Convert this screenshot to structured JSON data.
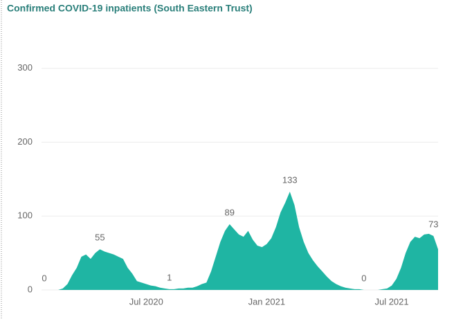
{
  "chart_data": {
    "type": "area",
    "title": "Confirmed COVID-19 inpatients (South Eastern Trust)",
    "categories": [
      null,
      null,
      null,
      null,
      null,
      null,
      null,
      null,
      null,
      null,
      null,
      null,
      null,
      null,
      null,
      null,
      null,
      null,
      null,
      null,
      null,
      null,
      "Jul 2020",
      null,
      null,
      null,
      null,
      null,
      null,
      null,
      null,
      null,
      null,
      null,
      null,
      null,
      null,
      null,
      null,
      null,
      null,
      null,
      null,
      null,
      null,
      null,
      null,
      null,
      "Jan 2021",
      null,
      null,
      null,
      null,
      null,
      null,
      null,
      null,
      null,
      null,
      null,
      null,
      null,
      null,
      null,
      null,
      null,
      null,
      null,
      null,
      null,
      null,
      null,
      null,
      null,
      null,
      "Jul 2021",
      null,
      null,
      null,
      null,
      null,
      null,
      null,
      null,
      null,
      null
    ],
    "values": [
      0,
      0,
      0,
      0,
      2,
      8,
      20,
      30,
      45,
      48,
      42,
      50,
      55,
      52,
      50,
      48,
      45,
      42,
      30,
      22,
      12,
      10,
      8,
      6,
      5,
      3,
      2,
      1,
      1,
      2,
      2,
      3,
      3,
      5,
      8,
      10,
      25,
      45,
      65,
      80,
      89,
      82,
      75,
      72,
      80,
      68,
      60,
      58,
      62,
      70,
      85,
      105,
      118,
      133,
      115,
      85,
      65,
      50,
      40,
      32,
      25,
      18,
      12,
      8,
      5,
      3,
      2,
      1,
      1,
      0,
      0,
      0,
      0,
      1,
      2,
      6,
      15,
      30,
      50,
      65,
      72,
      70,
      75,
      76,
      73,
      55
    ],
    "value_labels": [
      "0",
      null,
      null,
      null,
      null,
      null,
      null,
      null,
      null,
      null,
      null,
      null,
      "55",
      null,
      null,
      null,
      null,
      null,
      null,
      null,
      null,
      null,
      null,
      null,
      null,
      null,
      null,
      "1",
      null,
      null,
      null,
      null,
      null,
      null,
      null,
      null,
      null,
      null,
      null,
      null,
      "89",
      null,
      null,
      null,
      null,
      null,
      null,
      null,
      null,
      null,
      null,
      null,
      null,
      "133",
      null,
      null,
      null,
      null,
      null,
      null,
      null,
      null,
      null,
      null,
      null,
      null,
      null,
      null,
      null,
      "0",
      null,
      null,
      null,
      null,
      null,
      null,
      null,
      null,
      null,
      null,
      null,
      null,
      null,
      null,
      "73",
      null
    ],
    "color": "#1fb5a3",
    "ylim": [
      0,
      340
    ],
    "yticks": [
      0,
      100,
      200,
      300
    ],
    "grid": true
  }
}
